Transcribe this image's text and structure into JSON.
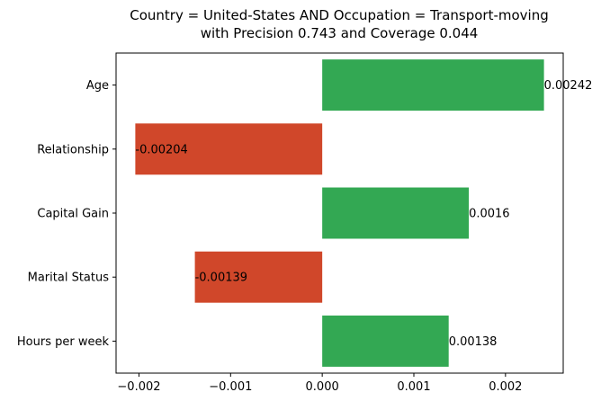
{
  "chart_data": {
    "type": "bar",
    "orientation": "horizontal",
    "title": "Country = United-States AND Occupation = Transport-moving",
    "subtitle": "with Precision 0.743 and Coverage 0.044",
    "xlabel": "",
    "ylabel": "",
    "categories": [
      "Age",
      "Relationship",
      "Capital Gain",
      "Marital Status",
      "Hours per week"
    ],
    "values": [
      0.00242,
      -0.00204,
      0.0016,
      -0.00139,
      0.00138
    ],
    "value_labels": [
      "0.00242",
      "-0.00204",
      "0.0016",
      "-0.00139",
      "0.00138"
    ],
    "xlim": [
      -0.00225,
      0.00263
    ],
    "xticks": [
      -0.002,
      -0.001,
      0.0,
      0.001,
      0.002
    ],
    "xtick_labels": [
      "−0.002",
      "−0.001",
      "0.000",
      "0.001",
      "0.002"
    ],
    "grid": false,
    "legend": "none",
    "colors": {
      "positive": "#33a853",
      "negative": "#d0472a"
    }
  }
}
